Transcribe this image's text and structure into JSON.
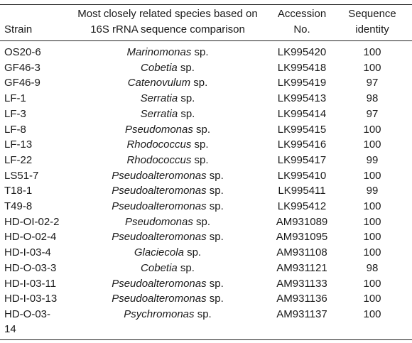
{
  "table": {
    "header": [
      "Strain",
      "Most closely related species based on 16S rRNA sequence comparison",
      "Accession No.",
      "Sequence identity"
    ],
    "rows": [
      [
        "OS20-6",
        {
          "genus": "Marinomonas",
          "suffix": "sp."
        },
        "LK995420",
        "100"
      ],
      [
        "GF46-3",
        {
          "genus": "Cobetia",
          "suffix": "sp."
        },
        "LK995418",
        "100"
      ],
      [
        "GF46-9",
        {
          "genus": "Catenovulum",
          "suffix": "sp."
        },
        "LK995419",
        "97"
      ],
      [
        "LF-1",
        {
          "genus": "Serratia",
          "suffix": "sp."
        },
        "LK995413",
        "98"
      ],
      [
        "LF-3",
        {
          "genus": "Serratia",
          "suffix": "sp."
        },
        "LK995414",
        "97"
      ],
      [
        "LF-8",
        {
          "genus": "Pseudomonas",
          "suffix": "sp."
        },
        "LK995415",
        "100"
      ],
      [
        "LF-13",
        {
          "genus": "Rhodococcus",
          "suffix": "sp."
        },
        "LK995416",
        "100"
      ],
      [
        "LF-22",
        {
          "genus": "Rhodococcus",
          "suffix": "sp."
        },
        "LK995417",
        "99"
      ],
      [
        "LS51-7",
        {
          "genus": "Pseudoalteromonas",
          "suffix": "sp."
        },
        "LK995410",
        "100"
      ],
      [
        "T18-1",
        {
          "genus": "Pseudoalteromonas",
          "suffix": "sp."
        },
        "LK995411",
        "99"
      ],
      [
        "T49-8",
        {
          "genus": "Pseudoalteromonas",
          "suffix": "sp."
        },
        "LK995412",
        "100"
      ],
      [
        "HD-OI-02-2",
        {
          "genus": "Pseudomonas",
          "suffix": "sp."
        },
        "AM931089",
        "100"
      ],
      [
        "HD-O-02-4",
        {
          "genus": "Pseudoalteromonas",
          "suffix": "sp."
        },
        "AM931095",
        "100"
      ],
      [
        "HD-I-03-4",
        {
          "genus": "Glaciecola",
          "suffix": "sp."
        },
        "AM931108",
        "100"
      ],
      [
        "HD-O-03-3",
        {
          "genus": "Cobetia",
          "suffix": "sp."
        },
        "AM931121",
        "98"
      ],
      [
        "HD-I-03-11",
        {
          "genus": "Pseudoalteromonas",
          "suffix": "sp."
        },
        "AM931133",
        "100"
      ],
      [
        "HD-I-03-13",
        {
          "genus": "Pseudoalteromonas",
          "suffix": "sp."
        },
        "AM931136",
        "100"
      ],
      [
        "HD-O-03-14",
        {
          "genus": "Psychromonas",
          "suffix": "sp."
        },
        "AM931137",
        "100"
      ]
    ]
  }
}
